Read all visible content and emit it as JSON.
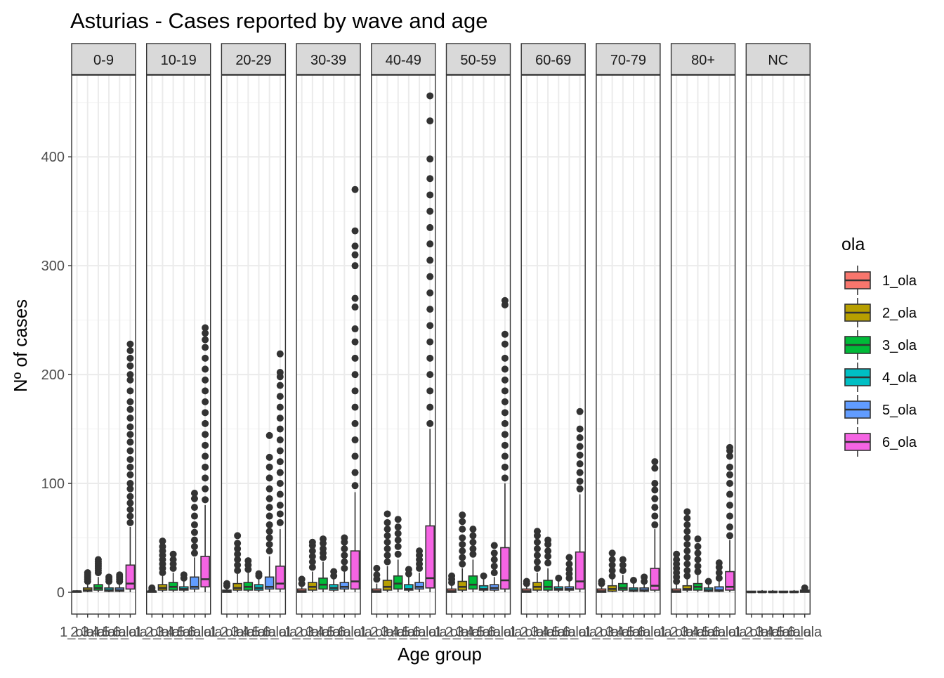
{
  "chart_data": {
    "type": "boxplot",
    "title": "Asturias - Cases reported by wave and age",
    "xlabel": "Age group",
    "ylabel": "Nº of cases",
    "ylim": [
      -20,
      475
    ],
    "yticks": [
      0,
      100,
      200,
      300,
      400
    ],
    "grid": true,
    "legend": {
      "title": "ola",
      "placement": "right",
      "entries": [
        {
          "label": "1_ola",
          "color": "#F8766D"
        },
        {
          "label": "2_ola",
          "color": "#B79F00"
        },
        {
          "label": "3_ola",
          "color": "#00BA38"
        },
        {
          "label": "4_ola",
          "color": "#00BFC4"
        },
        {
          "label": "5_ola",
          "color": "#619CFF"
        },
        {
          "label": "6_ola",
          "color": "#F564E3"
        }
      ]
    },
    "facet_tick_labels": [
      "1_ola",
      "2_ola",
      "3_ola",
      "4_ola",
      "5_ola",
      "6_ola"
    ],
    "facets": [
      {
        "label": "0-9",
        "boxes": [
          {
            "min": 0,
            "q1": 0,
            "med": 1,
            "q3": 1,
            "max": 2,
            "out": []
          },
          {
            "min": 0,
            "q1": 1,
            "med": 2,
            "q3": 4,
            "max": 9,
            "out": [
              10,
              12,
              14,
              16,
              18
            ]
          },
          {
            "min": 0,
            "q1": 2,
            "med": 4,
            "q3": 7,
            "max": 14,
            "out": [
              18,
              20,
              22,
              24,
              26,
              28,
              30
            ]
          },
          {
            "min": 0,
            "q1": 1,
            "med": 2,
            "q3": 4,
            "max": 8,
            "out": [
              10,
              12,
              14
            ]
          },
          {
            "min": 0,
            "q1": 1,
            "med": 2,
            "q3": 4,
            "max": 8,
            "out": [
              10,
              12,
              14,
              16
            ]
          },
          {
            "min": 0,
            "q1": 3,
            "med": 8,
            "q3": 25,
            "max": 60,
            "out": [
              64,
              70,
              76,
              82,
              88,
              95,
              100,
              108,
              115,
              122,
              130,
              138,
              145,
              152,
              160,
              168,
              175,
              185,
              195,
              200,
              208,
              215,
              222,
              228
            ]
          }
        ]
      },
      {
        "label": "10-19",
        "boxes": [
          {
            "min": 0,
            "q1": 0,
            "med": 1,
            "q3": 1,
            "max": 2,
            "out": [
              3,
              4
            ]
          },
          {
            "min": 0,
            "q1": 2,
            "med": 4,
            "q3": 7,
            "max": 15,
            "out": [
              18,
              22,
              26,
              30,
              34,
              38,
              42,
              47
            ]
          },
          {
            "min": 0,
            "q1": 2,
            "med": 5,
            "q3": 9,
            "max": 18,
            "out": [
              22,
              26,
              30,
              35
            ]
          },
          {
            "min": 0,
            "q1": 2,
            "med": 3,
            "q3": 5,
            "max": 10,
            "out": [
              13,
              16
            ]
          },
          {
            "min": 0,
            "q1": 3,
            "med": 5,
            "q3": 14,
            "max": 32,
            "out": [
              36,
              42,
              48,
              55,
              62,
              70,
              78,
              86,
              91
            ]
          },
          {
            "min": 0,
            "q1": 5,
            "med": 12,
            "q3": 33,
            "max": 80,
            "out": [
              85,
              95,
              105,
              115,
              125,
              135,
              145,
              155,
              165,
              175,
              185,
              195,
              205,
              215,
              225,
              232,
              238,
              243
            ]
          }
        ]
      },
      {
        "label": "20-29",
        "boxes": [
          {
            "min": 0,
            "q1": 0,
            "med": 1,
            "q3": 2,
            "max": 4,
            "out": [
              6,
              8
            ]
          },
          {
            "min": 0,
            "q1": 2,
            "med": 4,
            "q3": 8,
            "max": 17,
            "out": [
              20,
              25,
              30,
              35,
              40,
              45,
              52
            ]
          },
          {
            "min": 0,
            "q1": 2,
            "med": 5,
            "q3": 9,
            "max": 18,
            "out": [
              21,
              25,
              29
            ]
          },
          {
            "min": 0,
            "q1": 2,
            "med": 4,
            "q3": 7,
            "max": 12,
            "out": [
              15,
              17
            ]
          },
          {
            "min": 0,
            "q1": 3,
            "med": 5,
            "q3": 14,
            "max": 33,
            "out": [
              38,
              44,
              50,
              56,
              62,
              70,
              78,
              86,
              95,
              105,
              115,
              124,
              144
            ]
          },
          {
            "min": 0,
            "q1": 3,
            "med": 8,
            "q3": 24,
            "max": 58,
            "out": [
              64,
              72,
              80,
              90,
              100,
              110,
              120,
              130,
              140,
              150,
              160,
              170,
              180,
              190,
              198,
              202,
              219
            ]
          }
        ]
      },
      {
        "label": "30-39",
        "boxes": [
          {
            "min": 0,
            "q1": 0,
            "med": 1,
            "q3": 3,
            "max": 6,
            "out": [
              8,
              12
            ]
          },
          {
            "min": 0,
            "q1": 2,
            "med": 5,
            "q3": 9,
            "max": 19,
            "out": [
              23,
              28,
              33,
              38,
              43,
              46
            ]
          },
          {
            "min": 0,
            "q1": 3,
            "med": 7,
            "q3": 13,
            "max": 28,
            "out": [
              32,
              36,
              40,
              45,
              49
            ]
          },
          {
            "min": 0,
            "q1": 2,
            "med": 4,
            "q3": 7,
            "max": 13,
            "out": [
              15,
              19
            ]
          },
          {
            "min": 0,
            "q1": 3,
            "med": 5,
            "q3": 9,
            "max": 19,
            "out": [
              22,
              28,
              34,
              40,
              46,
              50
            ]
          },
          {
            "min": 0,
            "q1": 3,
            "med": 10,
            "q3": 38,
            "max": 92,
            "out": [
              98,
              110,
              125,
              140,
              155,
              170,
              185,
              200,
              215,
              230,
              242,
              262,
              270,
              300,
              310,
              318,
              332,
              370
            ]
          }
        ]
      },
      {
        "label": "40-49",
        "boxes": [
          {
            "min": 0,
            "q1": 0,
            "med": 1,
            "q3": 3,
            "max": 8,
            "out": [
              12,
              16,
              22
            ]
          },
          {
            "min": 0,
            "q1": 2,
            "med": 5,
            "q3": 11,
            "max": 24,
            "out": [
              28,
              34,
              40,
              46,
              52,
              58,
              64,
              72
            ]
          },
          {
            "min": 0,
            "q1": 3,
            "med": 8,
            "q3": 15,
            "max": 30,
            "out": [
              35,
              42,
              48,
              54,
              60,
              67
            ]
          },
          {
            "min": 0,
            "q1": 2,
            "med": 3,
            "q3": 7,
            "max": 14,
            "out": [
              17,
              21
            ]
          },
          {
            "min": 0,
            "q1": 3,
            "med": 5,
            "q3": 9,
            "max": 18,
            "out": [
              22,
              26,
              30,
              34,
              38
            ]
          },
          {
            "min": 0,
            "q1": 4,
            "med": 13,
            "q3": 61,
            "max": 150,
            "out": [
              155,
              170,
              185,
              200,
              215,
              230,
              245,
              260,
              275,
              290,
              305,
              320,
              335,
              350,
              365,
              380,
              398,
              433,
              456
            ]
          }
        ]
      },
      {
        "label": "50-59",
        "boxes": [
          {
            "min": 0,
            "q1": 0,
            "med": 1,
            "q3": 3,
            "max": 7,
            "out": [
              9,
              12,
              15
            ]
          },
          {
            "min": 0,
            "q1": 2,
            "med": 5,
            "q3": 10,
            "max": 22,
            "out": [
              26,
              32,
              38,
              44,
              50,
              58,
              65,
              71
            ]
          },
          {
            "min": 0,
            "q1": 3,
            "med": 7,
            "q3": 15,
            "max": 30,
            "out": [
              35,
              40,
              46,
              52,
              58
            ]
          },
          {
            "min": 0,
            "q1": 2,
            "med": 3,
            "q3": 6,
            "max": 12,
            "out": [
              15
            ]
          },
          {
            "min": 0,
            "q1": 2,
            "med": 4,
            "q3": 7,
            "max": 14,
            "out": [
              18,
              24,
              30,
              36,
              43
            ]
          },
          {
            "min": 0,
            "q1": 3,
            "med": 11,
            "q3": 41,
            "max": 100,
            "out": [
              105,
              115,
              125,
              135,
              145,
              155,
              165,
              175,
              185,
              195,
              205,
              215,
              228,
              237,
              264,
              268
            ]
          }
        ]
      },
      {
        "label": "60-69",
        "boxes": [
          {
            "min": 0,
            "q1": 0,
            "med": 1,
            "q3": 3,
            "max": 6,
            "out": [
              8,
              10
            ]
          },
          {
            "min": 0,
            "q1": 2,
            "med": 5,
            "q3": 9,
            "max": 18,
            "out": [
              22,
              28,
              34,
              40,
              46,
              52,
              56
            ]
          },
          {
            "min": 0,
            "q1": 2,
            "med": 5,
            "q3": 11,
            "max": 22,
            "out": [
              27,
              33,
              38,
              44,
              48
            ]
          },
          {
            "min": 0,
            "q1": 2,
            "med": 3,
            "q3": 5,
            "max": 10,
            "out": [
              13
            ]
          },
          {
            "min": 0,
            "q1": 2,
            "med": 3,
            "q3": 5,
            "max": 10,
            "out": [
              13,
              17,
              21,
              26,
              32
            ]
          },
          {
            "min": 0,
            "q1": 3,
            "med": 10,
            "q3": 37,
            "max": 90,
            "out": [
              95,
              102,
              110,
              118,
              126,
              134,
              142,
              150,
              166
            ]
          }
        ]
      },
      {
        "label": "70-79",
        "boxes": [
          {
            "min": 0,
            "q1": 0,
            "med": 1,
            "q3": 3,
            "max": 6,
            "out": [
              8,
              10
            ]
          },
          {
            "min": 0,
            "q1": 1,
            "med": 3,
            "q3": 6,
            "max": 12,
            "out": [
              15,
              20,
              25,
              30,
              36
            ]
          },
          {
            "min": 0,
            "q1": 2,
            "med": 4,
            "q3": 8,
            "max": 16,
            "out": [
              20,
              25,
              30
            ]
          },
          {
            "min": 0,
            "q1": 1,
            "med": 2,
            "q3": 4,
            "max": 8,
            "out": [
              11
            ]
          },
          {
            "min": 0,
            "q1": 1,
            "med": 2,
            "q3": 4,
            "max": 8,
            "out": [
              10,
              14
            ]
          },
          {
            "min": 0,
            "q1": 2,
            "med": 6,
            "q3": 22,
            "max": 58,
            "out": [
              62,
              70,
              78,
              86,
              94,
              100,
              114,
              120
            ]
          }
        ]
      },
      {
        "label": "80+",
        "boxes": [
          {
            "min": 0,
            "q1": 0,
            "med": 1,
            "q3": 3,
            "max": 7,
            "out": [
              10,
              14,
              18,
              22,
              26,
              30,
              35
            ]
          },
          {
            "min": 0,
            "q1": 2,
            "med": 3,
            "q3": 6,
            "max": 12,
            "out": [
              15,
              20,
              26,
              32,
              38,
              44,
              50,
              56,
              62,
              68,
              74
            ]
          },
          {
            "min": 0,
            "q1": 2,
            "med": 5,
            "q3": 8,
            "max": 16,
            "out": [
              19,
              24,
              30,
              36,
              42,
              49
            ]
          },
          {
            "min": 0,
            "q1": 1,
            "med": 2,
            "q3": 4,
            "max": 8,
            "out": [
              10
            ]
          },
          {
            "min": 0,
            "q1": 1,
            "med": 2,
            "q3": 5,
            "max": 10,
            "out": [
              13,
              18,
              23,
              27
            ]
          },
          {
            "min": 0,
            "q1": 2,
            "med": 5,
            "q3": 19,
            "max": 48,
            "out": [
              52,
              60,
              70,
              80,
              90,
              100,
              108,
              115,
              125,
              130,
              133
            ]
          }
        ]
      },
      {
        "label": "NC",
        "boxes": [
          {
            "min": 0,
            "q1": 0,
            "med": 0,
            "q3": 1,
            "max": 1,
            "out": []
          },
          {
            "min": 0,
            "q1": 0,
            "med": 0,
            "q3": 1,
            "max": 2,
            "out": []
          },
          {
            "min": 0,
            "q1": 0,
            "med": 0,
            "q3": 1,
            "max": 2,
            "out": []
          },
          {
            "min": 0,
            "q1": 0,
            "med": 0,
            "q3": 1,
            "max": 1,
            "out": []
          },
          {
            "min": 0,
            "q1": 0,
            "med": 0,
            "q3": 1,
            "max": 2,
            "out": []
          },
          {
            "min": 0,
            "q1": 0,
            "med": 1,
            "q3": 2,
            "max": 3,
            "out": [
              4
            ]
          }
        ]
      }
    ]
  }
}
